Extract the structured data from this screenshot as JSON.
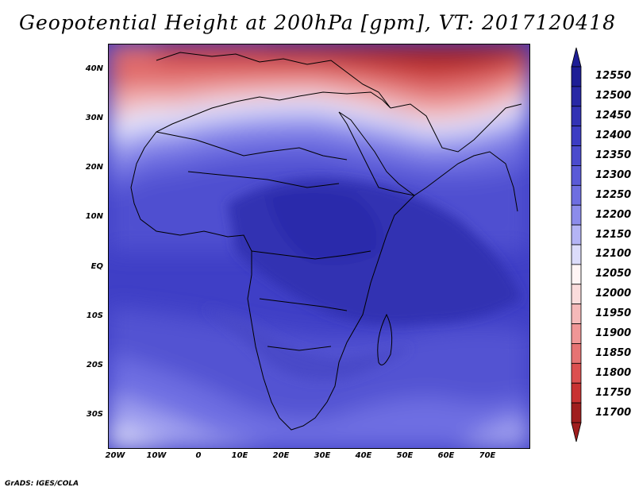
{
  "title": "Geopotential Height at 200hPa [gpm], VT: 2017120418",
  "latitude_ticks": [
    "40N",
    "30N",
    "20N",
    "10N",
    "EQ",
    "10S",
    "20S",
    "30S"
  ],
  "longitude_ticks": [
    "20W",
    "10W",
    "0",
    "10E",
    "20E",
    "30E",
    "40E",
    "50E",
    "60E",
    "70E"
  ],
  "colorbar": {
    "unit": "gpm",
    "levels": [
      "12550",
      "12500",
      "12450",
      "12400",
      "12350",
      "12300",
      "12250",
      "12200",
      "12150",
      "12100",
      "12050",
      "12000",
      "11950",
      "11900",
      "11850",
      "11800",
      "11750",
      "11700"
    ],
    "colors": [
      "#1e1e96",
      "#2828a5",
      "#3232b4",
      "#3c3cc3",
      "#4b4bcd",
      "#5a5ad7",
      "#6e6ee1",
      "#8c8ceb",
      "#b4b4f5",
      "#dcdcfa",
      "#fff5f5",
      "#fadcdc",
      "#f5b9b9",
      "#f09696",
      "#e67373",
      "#dc5050",
      "#c83232",
      "#a01e1e"
    ]
  },
  "footer": "GrADS: IGES/COLA"
}
